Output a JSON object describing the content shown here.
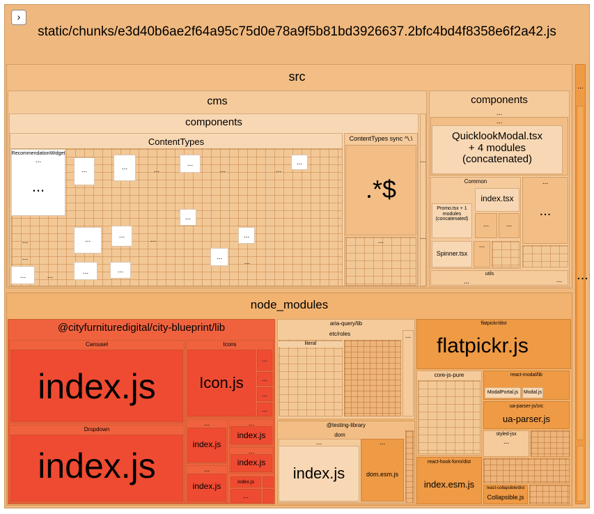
{
  "toggle": {
    "label": "›"
  },
  "chunk": {
    "title": "static/chunks/e3d40b6ae2f64a95c75d0e78a9f5b81bd3926637.2bfc4bd4f8358e6f2a42.js"
  },
  "src": {
    "title": "src",
    "cms": {
      "title": "cms",
      "components": {
        "title": "components",
        "content_types": {
          "title": "ContentTypes",
          "recommendation_widget": "RecommendationWidget"
        },
        "content_types_sync": {
          "title": "ContentTypes sync ^\\.\\",
          "regex": ".*$"
        }
      }
    },
    "components": {
      "title": "components",
      "quicklook": "QuicklookModal.tsx\n+ 4 modules\n(concatenated)",
      "common": {
        "title": "Common",
        "index": "index.tsx",
        "promo": "Promo.tsx + 1\nmodules\n(concatenated)",
        "spinner": "Spinner.tsx"
      },
      "utils": "utils"
    }
  },
  "node_modules": {
    "title": "node_modules",
    "blueprint": {
      "title": "@cityfurnituredigital/city-blueprint/lib",
      "carousel": {
        "title": "Carousel",
        "file": "index.js"
      },
      "dropdown": {
        "title": "Dropdown",
        "file": "index.js"
      },
      "icons": {
        "title": "Icons",
        "file": "Icon.js"
      },
      "small_a": "index.js",
      "small_b": "index.js",
      "small_c": "index.js",
      "small_d": "index.js",
      "small_e": "index.js"
    },
    "aria_query": {
      "title": "aria-query/lib",
      "etc_roles": "etc/roles",
      "literal": "literal"
    },
    "testing_library": {
      "title": "@testing-library",
      "dom": "dom",
      "index": "index.js",
      "dom_esm": "dom.esm.js"
    },
    "flatpickr": {
      "title": "flatpickr/dist",
      "file": "flatpickr.js"
    },
    "core_js_pure": "core-js-pure",
    "react_modal": {
      "title": "react-modal/lib",
      "modal_portal": "ModalPortal.js",
      "modal": "Modal.js"
    },
    "ua_parser": {
      "title": "ua-parser-js/src",
      "file": "ua-parser.js"
    },
    "styled_jsx": "styled-jsx",
    "react_hook_form": {
      "title": "react-hook-form/dist",
      "file": "index.esm.js"
    },
    "react_collapsible": {
      "title": "react-collapsible/dist",
      "file": "Collapsible.js"
    }
  },
  "ellipsis": "..."
}
